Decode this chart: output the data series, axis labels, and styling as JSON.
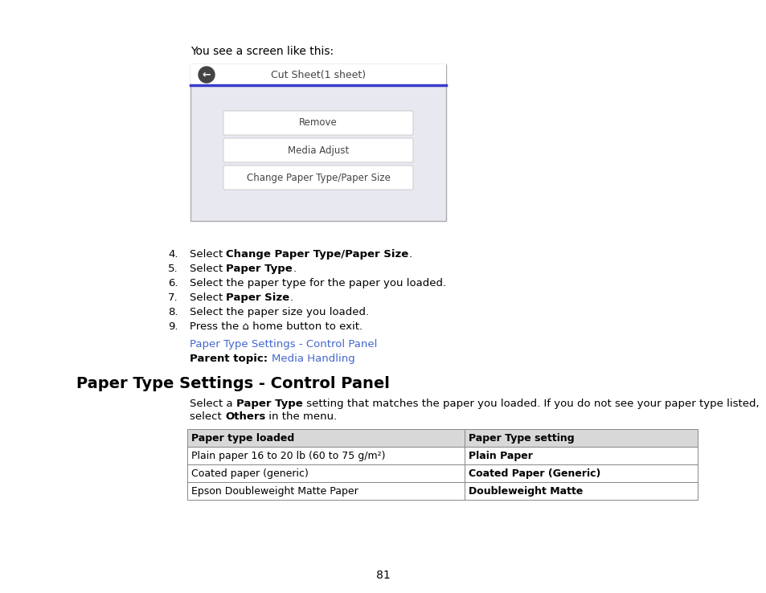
{
  "background_color": "#ffffff",
  "page_number": "81",
  "intro_text": "You see a screen like this:",
  "screen": {
    "title": "Cut Sheet(1 sheet)",
    "title_bar_color": "#3a3acc",
    "bg_color": "#e8e8f0",
    "back_button_color": "#444444",
    "buttons": [
      "Remove",
      "Media Adjust",
      "Change Paper Type/Paper Size"
    ]
  },
  "steps": [
    [
      "4.",
      "Select ",
      "Change Paper Type/Paper Size",
      "."
    ],
    [
      "5.",
      "Select ",
      "Paper Type",
      "."
    ],
    [
      "6.",
      "Select the paper type for the paper you loaded.",
      "",
      ""
    ],
    [
      "7.",
      "Select ",
      "Paper Size",
      "."
    ],
    [
      "8.",
      "Select the paper size you loaded.",
      "",
      ""
    ],
    [
      "9.",
      "Press the ⌂ home button to exit.",
      "",
      ""
    ]
  ],
  "link1": "Paper Type Settings - Control Panel",
  "link1_color": "#4466cc",
  "parent_topic_label": "Parent topic:",
  "parent_topic_link": "Media Handling",
  "parent_topic_color": "#4466cc",
  "section_title": "Paper Type Settings - Control Panel",
  "table_header": [
    "Paper type loaded",
    "Paper Type setting"
  ],
  "table_header_bg": "#d8d8d8",
  "table_rows": [
    [
      "Plain paper 16 to 20 lb (60 to 75 g/m²)",
      "Plain Paper"
    ],
    [
      "Coated paper (generic)",
      "Coated Paper (Generic)"
    ],
    [
      "Epson Doubleweight Matte Paper",
      "Doubleweight Matte"
    ]
  ]
}
